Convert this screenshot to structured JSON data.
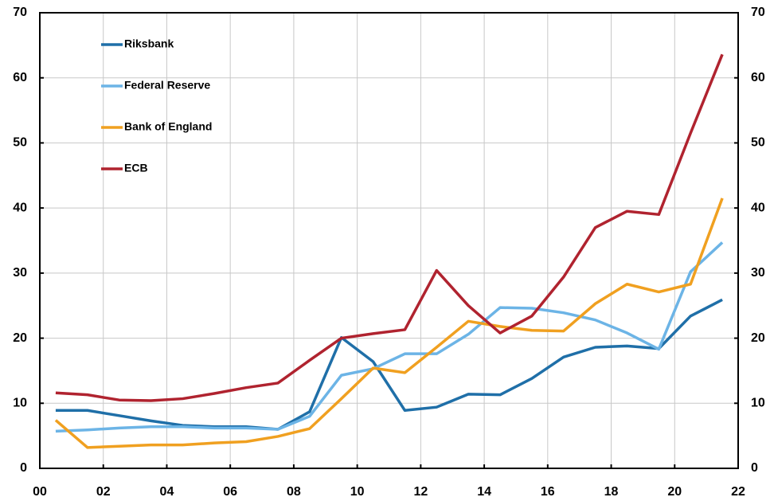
{
  "chart_data": {
    "type": "line",
    "x": [
      0.5,
      1.5,
      2.5,
      3.5,
      4.5,
      5.5,
      6.5,
      7.5,
      8.5,
      9.5,
      10.5,
      11.5,
      12.5,
      13.5,
      14.5,
      15.5,
      16.5,
      17.5,
      18.5,
      19.5,
      20.5,
      21.5
    ],
    "series": [
      {
        "name": "Riksbank",
        "color": "#1f6fa8",
        "values": [
          8.9,
          8.9,
          8.1,
          7.3,
          6.6,
          6.4,
          6.4,
          6.0,
          8.7,
          20.1,
          16.4,
          8.9,
          9.4,
          11.4,
          11.3,
          13.8,
          17.1,
          18.6,
          18.8,
          18.4,
          23.4,
          25.9
        ]
      },
      {
        "name": "Federal Reserve",
        "color": "#6cb4e6",
        "values": [
          5.7,
          5.9,
          6.2,
          6.4,
          6.4,
          6.2,
          6.2,
          6.0,
          8.0,
          14.3,
          15.3,
          17.6,
          17.6,
          20.6,
          24.7,
          24.6,
          23.9,
          22.8,
          20.8,
          18.3,
          30.2,
          34.7
        ]
      },
      {
        "name": "Bank of England",
        "color": "#f0a020",
        "values": [
          7.4,
          3.2,
          3.4,
          3.6,
          3.6,
          3.9,
          4.1,
          4.9,
          6.1,
          10.7,
          15.4,
          14.7,
          18.6,
          22.6,
          21.8,
          21.2,
          21.1,
          25.3,
          28.3,
          27.1,
          28.3,
          41.5
        ]
      },
      {
        "name": "ECB",
        "color": "#b0232f",
        "values": [
          11.6,
          11.3,
          10.5,
          10.4,
          10.7,
          11.5,
          12.4,
          13.1,
          16.6,
          20.0,
          20.7,
          21.3,
          30.4,
          25.0,
          20.8,
          23.4,
          29.4,
          37.0,
          39.5,
          39.0,
          51.5,
          63.6
        ]
      }
    ],
    "xlim": [
      0,
      22
    ],
    "xticks": [
      {
        "value": 0,
        "label": "00"
      },
      {
        "value": 2,
        "label": "02"
      },
      {
        "value": 4,
        "label": "04"
      },
      {
        "value": 6,
        "label": "06"
      },
      {
        "value": 8,
        "label": "08"
      },
      10,
      12,
      14,
      16,
      18,
      20,
      22
    ],
    "ylim": [
      0,
      70
    ],
    "yticks": [
      0,
      10,
      20,
      30,
      40,
      50,
      60,
      70
    ],
    "y2lim": [
      0,
      70
    ],
    "y2ticks": [
      0,
      10,
      20,
      30,
      40,
      50,
      60,
      70
    ],
    "grid": true,
    "legend": "upper-left"
  }
}
